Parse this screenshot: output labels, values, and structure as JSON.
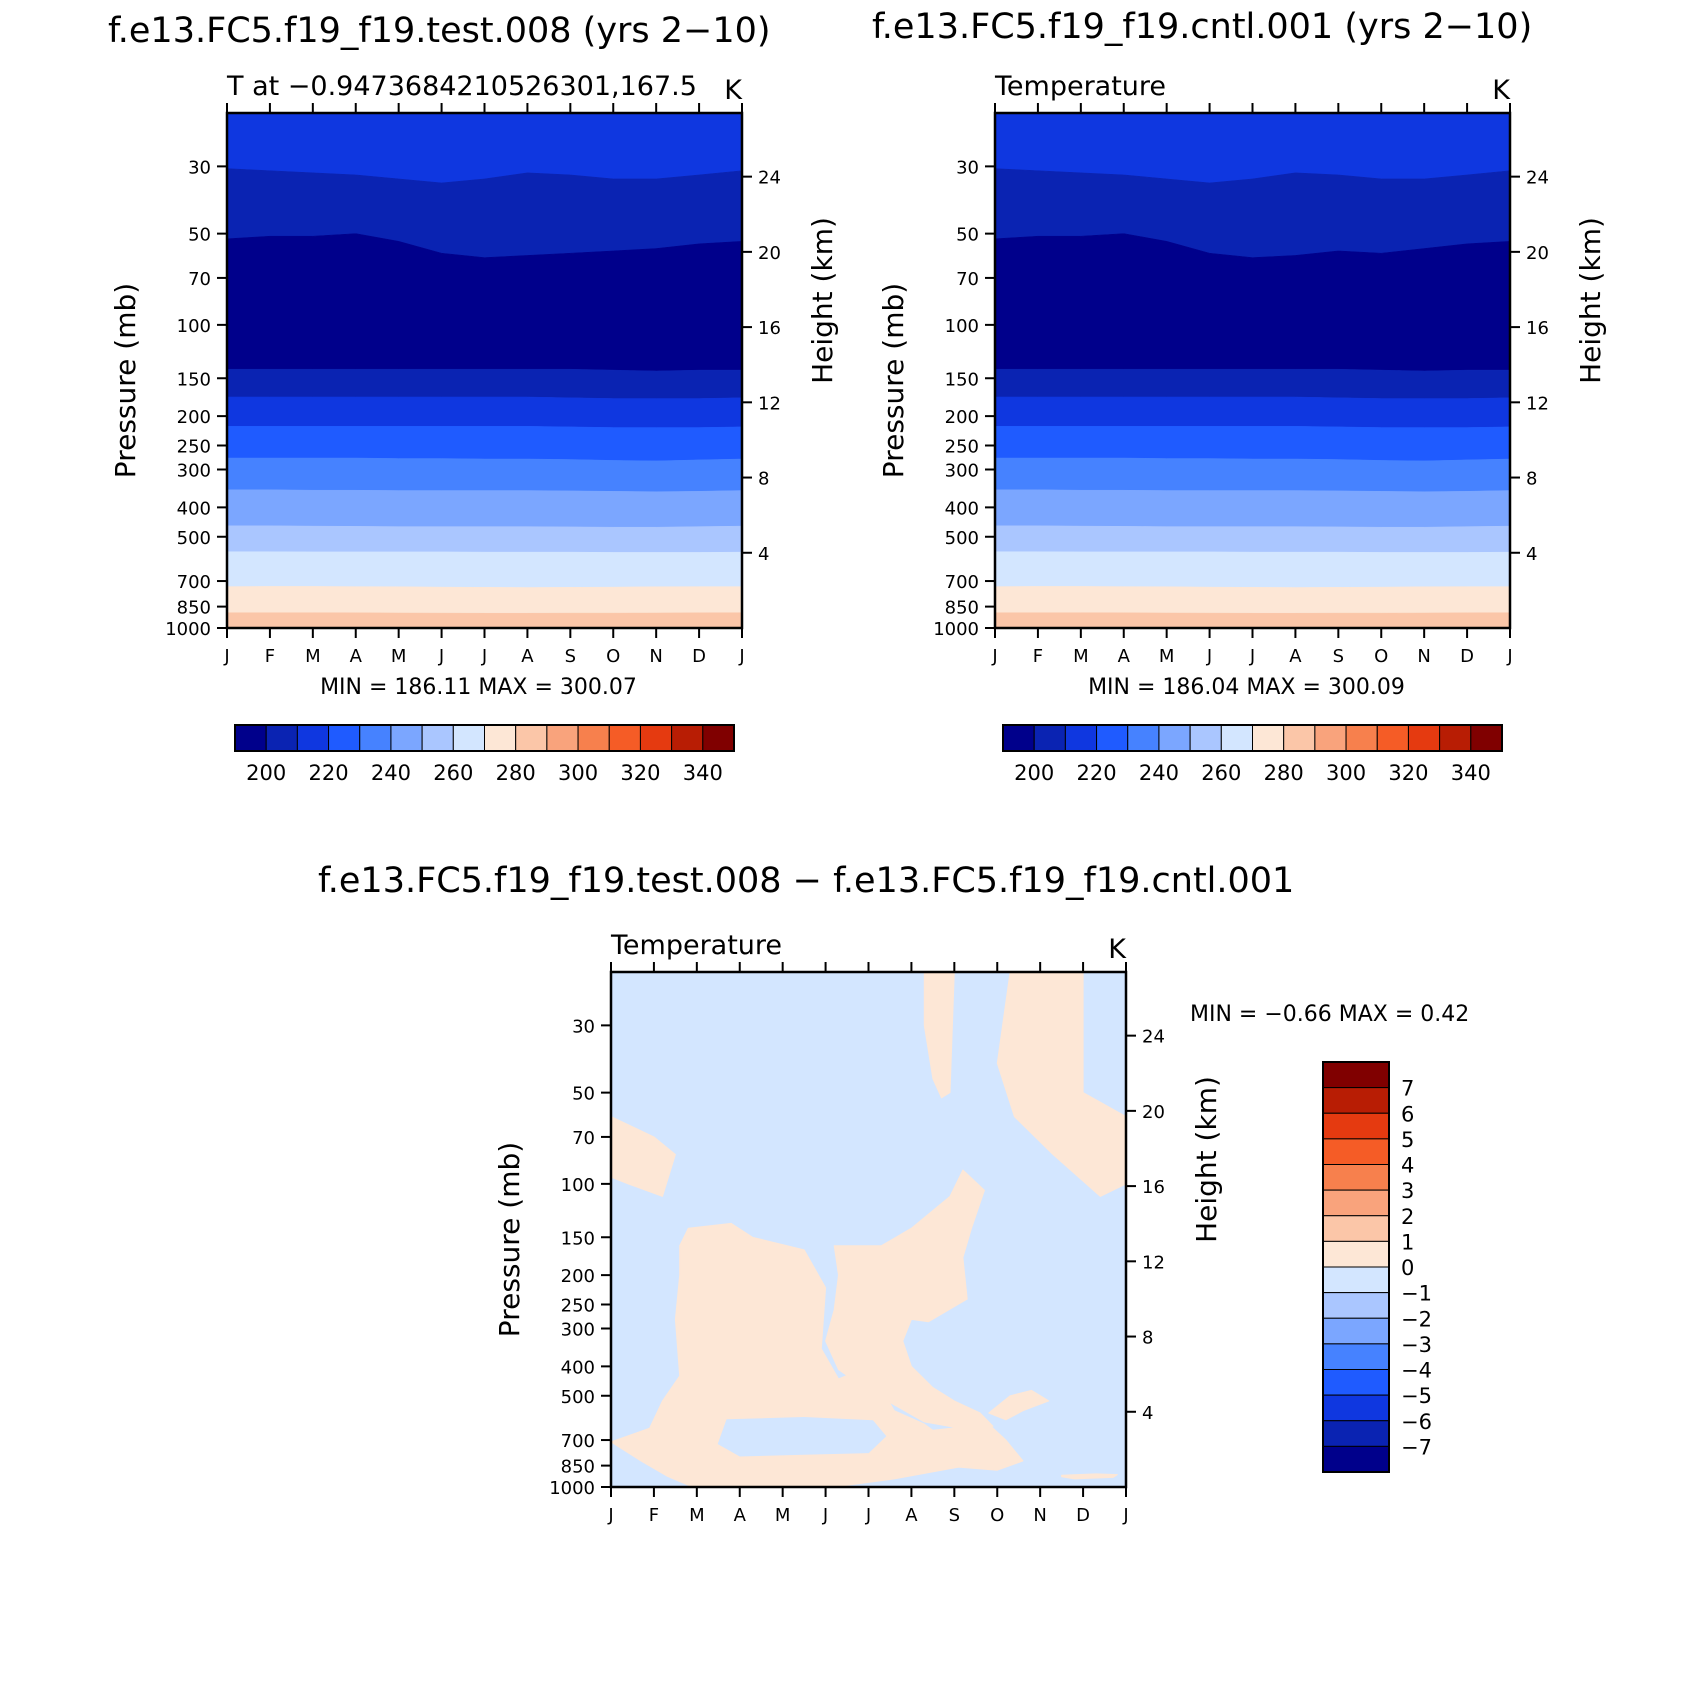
{
  "page_titles": {
    "top_left": "f.e13.FC5.f19_f19.test.008 (yrs 2−10)",
    "top_right": "f.e13.FC5.f19_f19.cntl.001 (yrs 2−10)",
    "bottom": "f.e13.FC5.f19_f19.test.008 − f.e13.FC5.f19_f19.cntl.001"
  },
  "colors": {
    "abs_scale": [
      "#00008b",
      "#0a23b2",
      "#0f37e0",
      "#1f5bff",
      "#4682ff",
      "#7ba6ff",
      "#aac6ff",
      "#d3e6ff",
      "#fde7d6",
      "#fbc6a8",
      "#f9a37c",
      "#f7804d",
      "#f55c26",
      "#e53a10",
      "#b81d04",
      "#800000"
    ],
    "diff_scale": [
      "#00008b",
      "#0a23b2",
      "#0f37e0",
      "#1f5bff",
      "#4682ff",
      "#7ba6ff",
      "#aac6ff",
      "#d3e6ff",
      "#fde7d6",
      "#fbc6a8",
      "#f9a37c",
      "#f7804d",
      "#f55c26",
      "#e53a10",
      "#b81d04",
      "#800000"
    ]
  },
  "chart_data": [
    {
      "type": "heatmap",
      "id": "test",
      "title": "f.e13.FC5.f19_f19.test.008 (yrs 2−10)",
      "subtitle_left": "T at −0.9473684210526301,167.5",
      "subtitle_right": "K",
      "xlabel": "",
      "ylabel": "Pressure (mb)",
      "ylabel_right": "Height (km)",
      "x_ticks": [
        "J",
        "F",
        "M",
        "A",
        "M",
        "J",
        "J",
        "A",
        "S",
        "O",
        "N",
        "D",
        "J"
      ],
      "y_ticks": [
        30,
        50,
        70,
        100,
        150,
        200,
        250,
        300,
        400,
        500,
        700,
        850,
        1000
      ],
      "y_ticks_right": [
        24,
        20,
        16,
        12,
        8,
        4
      ],
      "ylim": [
        20,
        1000
      ],
      "y_scale": "log",
      "stats": "MIN = 186.11 MAX = 300.07",
      "min": 186.11,
      "max": 300.07,
      "colorbar_labels": [
        "200",
        "220",
        "240",
        "260",
        "280",
        "300",
        "320",
        "340"
      ],
      "level_boundaries_mb": [
        [
          20,
          20,
          20,
          20,
          20,
          20,
          20,
          20,
          20,
          20,
          20,
          20,
          20
        ],
        [
          30.5,
          31,
          31.5,
          32,
          33,
          34,
          33,
          31.5,
          32,
          33,
          33,
          32,
          31
        ],
        [
          52,
          51,
          51,
          50,
          53,
          58,
          60,
          59,
          58,
          57,
          56,
          54,
          53
        ],
        [
          140,
          140,
          140,
          140,
          140,
          140,
          140,
          140,
          140,
          141,
          142,
          141,
          141
        ],
        [
          173,
          173,
          173,
          173,
          173,
          173,
          173,
          173,
          174,
          175,
          175,
          175,
          174
        ],
        [
          216,
          216,
          216,
          216,
          216,
          216,
          216,
          216,
          217,
          218,
          218,
          218,
          217
        ],
        [
          275,
          275,
          275,
          275,
          276,
          276,
          277,
          277,
          278,
          280,
          281,
          279,
          277
        ],
        [
          350,
          350,
          351,
          351,
          352,
          352,
          352,
          352,
          353,
          354,
          355,
          354,
          352
        ],
        [
          460,
          460,
          461,
          462,
          463,
          463,
          463,
          463,
          464,
          465,
          465,
          463,
          461
        ],
        [
          560,
          560,
          561,
          561,
          561,
          561,
          562,
          562,
          562,
          563,
          563,
          563,
          562
        ],
        [
          730,
          729,
          729,
          730,
          731,
          733,
          734,
          735,
          734,
          733,
          731,
          730,
          730
        ],
        [
          890,
          890,
          890,
          891,
          892,
          893,
          894,
          894,
          893,
          893,
          892,
          891,
          890
        ],
        [
          1000,
          1000,
          1000,
          1000,
          1000,
          1000,
          1000,
          1000,
          1000,
          1000,
          1000,
          1000,
          1000
        ]
      ],
      "level_colors_index": [
        2,
        1,
        0,
        1,
        2,
        3,
        4,
        5,
        6,
        7,
        8,
        9
      ]
    },
    {
      "type": "heatmap",
      "id": "cntl",
      "title": "f.e13.FC5.f19_f19.cntl.001 (yrs 2−10)",
      "subtitle_left": "Temperature",
      "subtitle_right": "K",
      "xlabel": "",
      "ylabel": "Pressure (mb)",
      "ylabel_right": "Height (km)",
      "x_ticks": [
        "J",
        "F",
        "M",
        "A",
        "M",
        "J",
        "J",
        "A",
        "S",
        "O",
        "N",
        "D",
        "J"
      ],
      "y_ticks": [
        30,
        50,
        70,
        100,
        150,
        200,
        250,
        300,
        400,
        500,
        700,
        850,
        1000
      ],
      "y_ticks_right": [
        24,
        20,
        16,
        12,
        8,
        4
      ],
      "ylim": [
        20,
        1000
      ],
      "y_scale": "log",
      "stats": "MIN = 186.04 MAX = 300.09",
      "min": 186.04,
      "max": 300.09,
      "colorbar_labels": [
        "200",
        "220",
        "240",
        "260",
        "280",
        "300",
        "320",
        "340"
      ],
      "level_boundaries_mb": [
        [
          20,
          20,
          20,
          20,
          20,
          20,
          20,
          20,
          20,
          20,
          20,
          20,
          20
        ],
        [
          30.5,
          31,
          31.5,
          32,
          33,
          34,
          33,
          31.5,
          32,
          33,
          33,
          32,
          31
        ],
        [
          52,
          51,
          51,
          50,
          53,
          58,
          60,
          59,
          57,
          58,
          56,
          54,
          53
        ],
        [
          140,
          140,
          140,
          140,
          140,
          140,
          140,
          140,
          140,
          141,
          142,
          141,
          141
        ],
        [
          173,
          173,
          173,
          173,
          173,
          173,
          173,
          173,
          174,
          175,
          175,
          175,
          174
        ],
        [
          216,
          216,
          216,
          216,
          216,
          216,
          216,
          216,
          217,
          218,
          218,
          218,
          217
        ],
        [
          275,
          275,
          275,
          275,
          276,
          276,
          277,
          277,
          278,
          280,
          281,
          279,
          277
        ],
        [
          350,
          350,
          351,
          351,
          352,
          352,
          352,
          352,
          353,
          354,
          355,
          354,
          352
        ],
        [
          460,
          460,
          461,
          462,
          463,
          463,
          463,
          463,
          464,
          465,
          465,
          463,
          461
        ],
        [
          560,
          560,
          561,
          561,
          561,
          561,
          562,
          562,
          562,
          563,
          563,
          563,
          562
        ],
        [
          730,
          729,
          729,
          730,
          731,
          733,
          734,
          735,
          734,
          733,
          731,
          730,
          730
        ],
        [
          890,
          890,
          890,
          891,
          892,
          893,
          894,
          894,
          893,
          893,
          892,
          891,
          890
        ],
        [
          1000,
          1000,
          1000,
          1000,
          1000,
          1000,
          1000,
          1000,
          1000,
          1000,
          1000,
          1000,
          1000
        ]
      ],
      "level_colors_index": [
        2,
        1,
        0,
        1,
        2,
        3,
        4,
        5,
        6,
        7,
        8,
        9
      ]
    },
    {
      "type": "heatmap",
      "id": "diff",
      "title": "f.e13.FC5.f19_f19.test.008 − f.e13.FC5.f19_f19.cntl.001",
      "subtitle_left": "Temperature",
      "subtitle_right": "K",
      "xlabel": "",
      "ylabel": "Pressure (mb)",
      "ylabel_right": "Height (km)",
      "x_ticks": [
        "J",
        "F",
        "M",
        "A",
        "M",
        "J",
        "J",
        "A",
        "S",
        "O",
        "N",
        "D",
        "J"
      ],
      "y_ticks": [
        30,
        50,
        70,
        100,
        150,
        200,
        250,
        300,
        400,
        500,
        700,
        850,
        1000
      ],
      "y_ticks_right": [
        24,
        20,
        16,
        12,
        8,
        4
      ],
      "ylim": [
        20,
        1000
      ],
      "y_scale": "log",
      "stats": "MIN = −0.66 MAX = 0.42",
      "min": -0.66,
      "max": 0.42,
      "colorbar_labels": [
        "7",
        "6",
        "5",
        "4",
        "3",
        "2",
        "1",
        "0",
        "−1",
        "−2",
        "−3",
        "−4",
        "−5",
        "−6",
        "−7"
      ],
      "background_level": "-1 to 0",
      "positive_regions": [
        {
          "region": "upper-mid (near Jul-Aug, 20-50 mb)",
          "points": [
            [
              7.3,
              20
            ],
            [
              8.0,
              20
            ],
            [
              7.9,
              50
            ],
            [
              7.7,
              52
            ],
            [
              7.5,
              45
            ],
            [
              7.3,
              30
            ]
          ]
        },
        {
          "region": "upper-right (Sep-Dec, 20-110 mb)",
          "points": [
            [
              9.3,
              20
            ],
            [
              11.0,
              20
            ],
            [
              11.0,
              50
            ],
            [
              12.0,
              60
            ],
            [
              12.0,
              100
            ],
            [
              11.4,
              110
            ],
            [
              10.3,
              80
            ],
            [
              9.4,
              60
            ],
            [
              9.0,
              40
            ]
          ]
        },
        {
          "region": "left (Jan, 60-110 mb)",
          "points": [
            [
              0,
              60
            ],
            [
              1.0,
              70
            ],
            [
              1.5,
              80
            ],
            [
              1.2,
              110
            ],
            [
              0.4,
              100
            ],
            [
              0,
              95
            ]
          ]
        },
        {
          "region": "lower-left (Feb-Jul, 150-1000 mb)",
          "points": [
            [
              1.6,
              160
            ],
            [
              1.8,
              140
            ],
            [
              2.8,
              135
            ],
            [
              3.3,
              150
            ],
            [
              4.5,
              165
            ],
            [
              5.0,
              220
            ],
            [
              4.9,
              350
            ],
            [
              5.3,
              440
            ],
            [
              6.0,
              400
            ],
            [
              6.6,
              560
            ],
            [
              7.3,
              620
            ],
            [
              7.5,
              650
            ],
            [
              8.8,
              620
            ],
            [
              9.2,
              700
            ],
            [
              9.6,
              820
            ],
            [
              9.0,
              880
            ],
            [
              8.1,
              860
            ],
            [
              6.6,
              940
            ],
            [
              5.2,
              1000
            ],
            [
              1.9,
              1000
            ],
            [
              1.3,
              920
            ],
            [
              0.7,
              820
            ],
            [
              0,
              710
            ],
            [
              0.9,
              640
            ],
            [
              1.2,
              520
            ],
            [
              1.6,
              430
            ],
            [
              1.5,
              280
            ],
            [
              1.6,
              200
            ]
          ]
        },
        {
          "region": "middle (Jun-Sep, 100-550 mb)",
          "points": [
            [
              5.2,
              160
            ],
            [
              6.3,
              160
            ],
            [
              7.0,
              140
            ],
            [
              7.9,
              110
            ],
            [
              8.2,
              90
            ],
            [
              8.7,
              105
            ],
            [
              8.4,
              140
            ],
            [
              8.2,
              175
            ],
            [
              8.3,
              240
            ],
            [
              7.4,
              285
            ],
            [
              7.0,
              280
            ],
            [
              6.8,
              330
            ],
            [
              7.0,
              400
            ],
            [
              7.5,
              470
            ],
            [
              8.0,
              520
            ],
            [
              8.6,
              570
            ],
            [
              8.9,
              630
            ],
            [
              8.4,
              650
            ],
            [
              7.3,
              610
            ],
            [
              6.0,
              480
            ],
            [
              5.3,
              410
            ],
            [
              5.0,
              330
            ],
            [
              5.2,
              260
            ],
            [
              5.3,
              200
            ]
          ]
        },
        {
          "region": "lower-right (Sep-Oct, 500-700 mb)",
          "points": [
            [
              8.8,
              570
            ],
            [
              9.3,
              500
            ],
            [
              9.8,
              480
            ],
            [
              10.2,
              520
            ],
            [
              9.6,
              560
            ],
            [
              9.2,
              600
            ]
          ]
        },
        {
          "region": "bottom-right strip (Oct-Nov, ~900 mb)",
          "points": [
            [
              10.5,
              915
            ],
            [
              11.3,
              905
            ],
            [
              11.8,
              910
            ],
            [
              11.7,
              930
            ],
            [
              10.8,
              940
            ],
            [
              10.5,
              925
            ]
          ]
        }
      ],
      "negative_holes": [
        {
          "region": "inner hole (Mar-Jun, 550-800 mb)",
          "points": [
            [
              2.7,
              600
            ],
            [
              4.5,
              590
            ],
            [
              6.1,
              605
            ],
            [
              6.4,
              680
            ],
            [
              6.0,
              770
            ],
            [
              4.5,
              780
            ],
            [
              3.0,
              790
            ],
            [
              2.5,
              720
            ]
          ]
        },
        {
          "region": "tiny hole (Jun, ~60 mb)",
          "points": [
            [
              5.7,
              55
            ],
            [
              6.0,
              50
            ],
            [
              6.3,
              55
            ],
            [
              6.0,
              58
            ]
          ]
        }
      ]
    }
  ]
}
